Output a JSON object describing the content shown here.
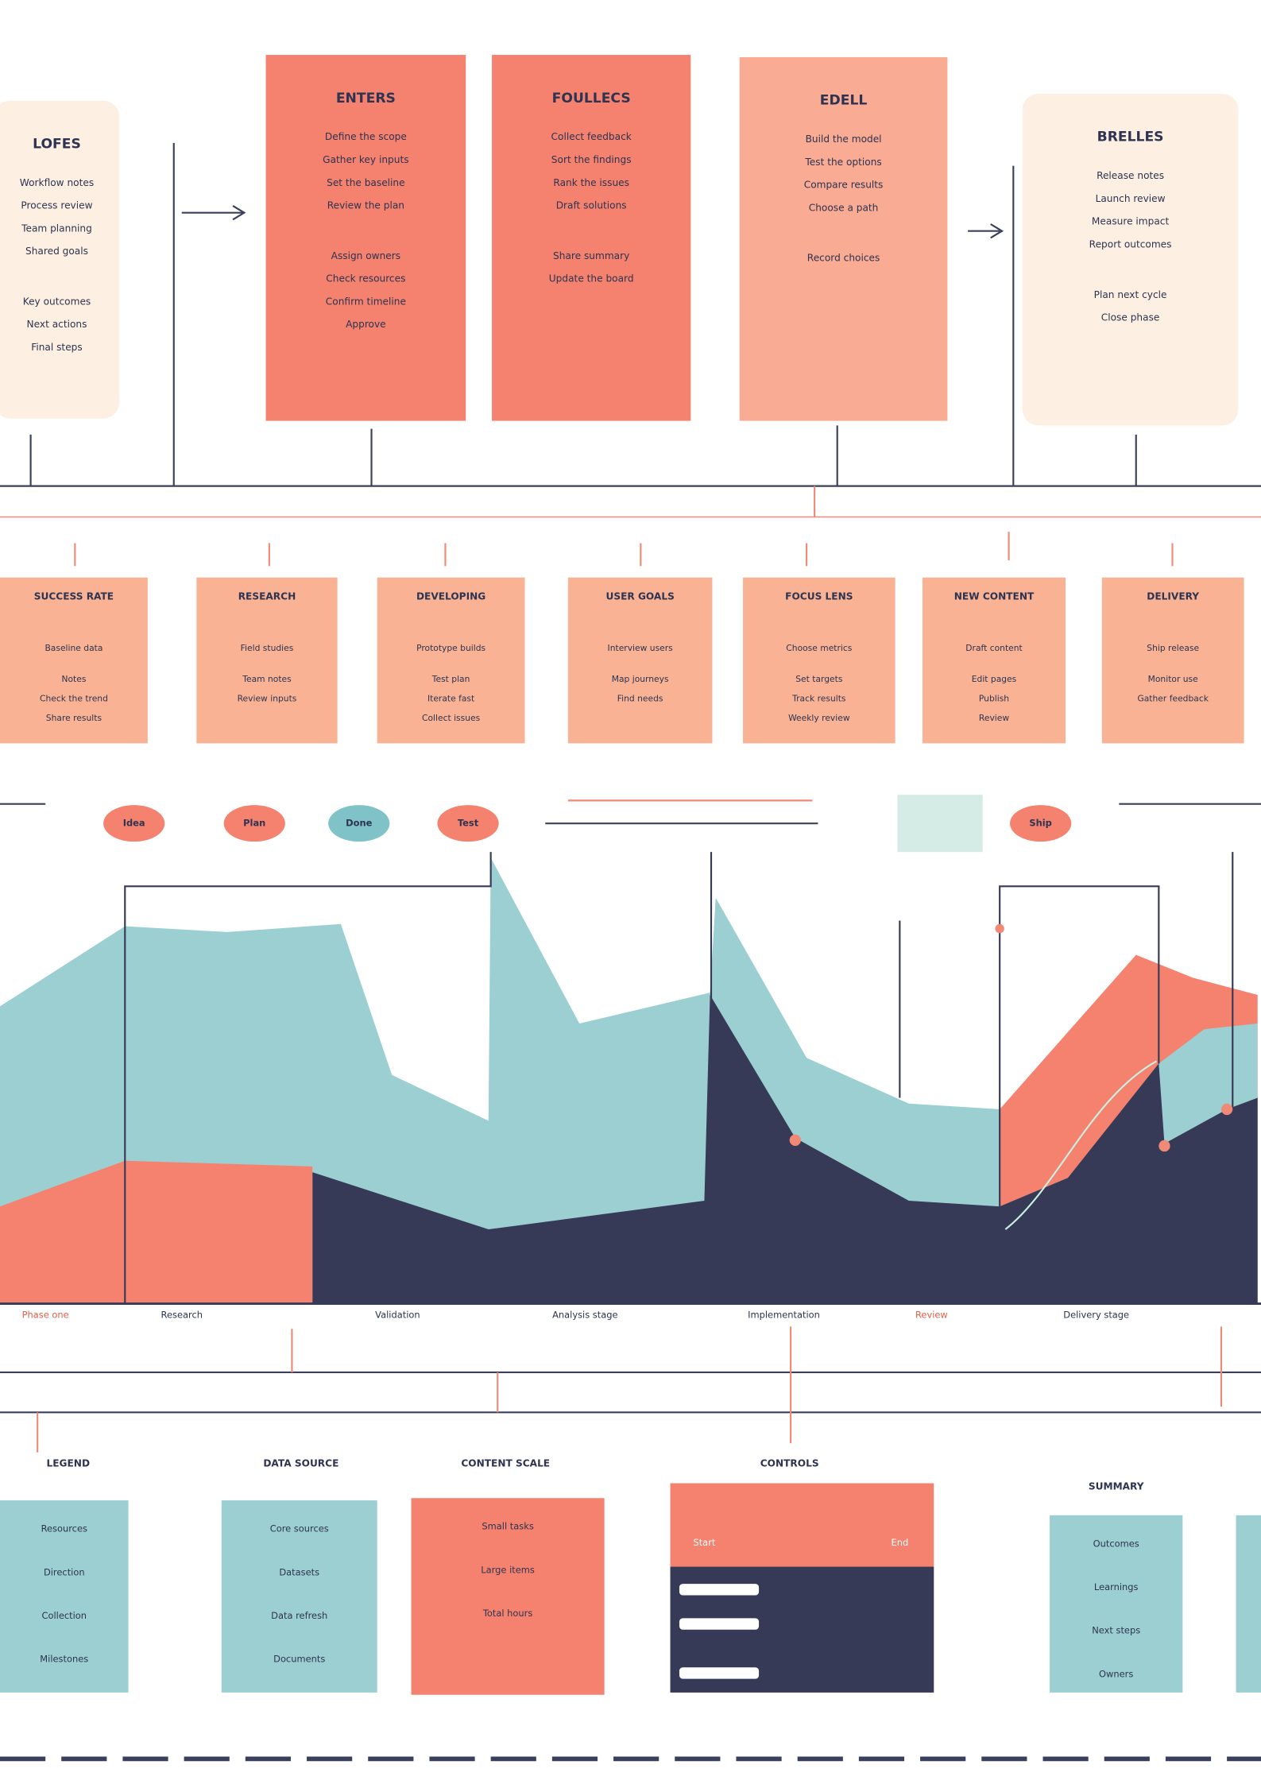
{
  "top_cards": [
    {
      "title": "LOFES",
      "lines": [
        "Workflow notes",
        "Process review",
        "Team planning",
        "Shared goals",
        "Key outcomes",
        "Next actions",
        "Final steps"
      ]
    },
    {
      "title": "ENTERS",
      "lines": [
        "Define the scope",
        "Gather key inputs",
        "Set the baseline",
        "Review the plan",
        "Assign owners",
        "Check resources",
        "Confirm timeline",
        "Approve"
      ]
    },
    {
      "title": "FOULLECS",
      "lines": [
        "Collect feedback",
        "Sort the findings",
        "Rank the issues",
        "Draft solutions",
        "Share summary",
        "Update the board"
      ]
    },
    {
      "title": "EDELL",
      "lines": [
        "Build the model",
        "Test the options",
        "Compare results",
        "Choose a path",
        "Record choices"
      ]
    },
    {
      "title": "BRELLES",
      "lines": [
        "Release notes",
        "Launch review",
        "Measure impact",
        "Report outcomes",
        "Plan next cycle",
        "Close phase"
      ]
    }
  ],
  "steps": [
    {
      "title": "SUCCESS RATE",
      "lines": [
        "Baseline data",
        "Notes",
        "Check the trend",
        "Share results"
      ]
    },
    {
      "title": "RESEARCH",
      "lines": [
        "Field studies",
        "Team notes",
        "Review inputs"
      ]
    },
    {
      "title": "DEVELOPING",
      "lines": [
        "Prototype builds",
        "Test plan",
        "Iterate fast",
        "Collect issues"
      ]
    },
    {
      "title": "USER GOALS",
      "lines": [
        "Interview users",
        "Map journeys",
        "Find needs"
      ]
    },
    {
      "title": "FOCUS LENS",
      "lines": [
        "Choose metrics",
        "Set targets",
        "Track results",
        "Weekly review"
      ]
    },
    {
      "title": "NEW CONTENT",
      "lines": [
        "Draft content",
        "Edit pages",
        "Publish",
        "Review"
      ]
    },
    {
      "title": "DELIVERY",
      "lines": [
        "Ship release",
        "Monitor use",
        "Gather feedback"
      ]
    }
  ],
  "pills": [
    "Idea",
    "Plan",
    "Done",
    "Test",
    "Ship"
  ],
  "axis_labels": [
    "Phase one",
    "Research",
    "Validation",
    "Analysis stage",
    "Implementation",
    "Review",
    "Delivery stage"
  ],
  "bottom_panels": [
    {
      "title": "LEGEND",
      "lines": [
        "Resources",
        "Direction",
        "Collection",
        "Milestones"
      ]
    },
    {
      "title": "DATA SOURCE",
      "lines": [
        "Core sources",
        "Datasets",
        "Data refresh",
        "Documents"
      ]
    },
    {
      "title": "CONTENT SCALE",
      "lines": [
        "Small tasks",
        "Large items",
        "Total hours"
      ]
    },
    {
      "title": "CONTROLS",
      "lines": [
        "Start",
        "End"
      ]
    },
    {
      "title": "SUMMARY",
      "lines": [
        "Outcomes",
        "Learnings",
        "Next steps",
        "Owners"
      ]
    }
  ]
}
